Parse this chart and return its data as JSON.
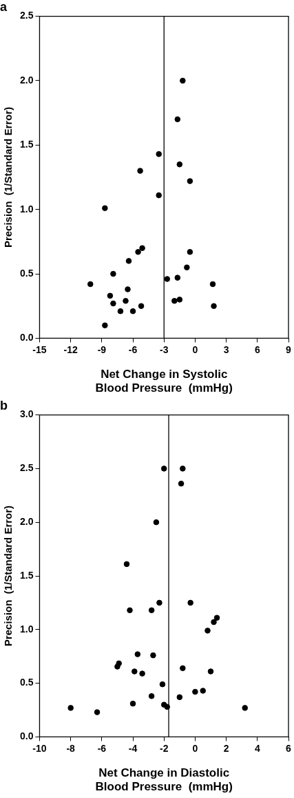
{
  "chart_data": [
    {
      "type": "scatter",
      "title": "a",
      "xlabel": "Net Change in Systolic Blood Pressure  (mmHg)",
      "ylabel": "Precision  (1/Standard Error)",
      "series": [
        {
          "color": "#000000",
          "x": [
            -1.2,
            -1.7,
            -3.5,
            -1.5,
            -5.3,
            -0.5,
            -3.5,
            -8.7,
            -5.1,
            -5.5,
            -6.4,
            -7.9,
            -10.1,
            -6.5,
            -8.2,
            -7.9,
            -6.7,
            -7.2,
            -6.0,
            -5.2,
            -8.7,
            -2.7,
            -1.7,
            -0.8,
            -0.5,
            -2.0,
            -1.5,
            1.7,
            1.8
          ],
          "values": [
            2.0,
            1.7,
            1.43,
            1.35,
            1.3,
            1.22,
            1.11,
            1.01,
            0.7,
            0.67,
            0.6,
            0.5,
            0.42,
            0.38,
            0.33,
            0.27,
            0.29,
            0.21,
            0.21,
            0.25,
            0.1,
            0.46,
            0.47,
            0.55,
            0.67,
            0.29,
            0.3,
            0.42,
            0.25
          ]
        }
      ],
      "xlim": [
        -15,
        9
      ],
      "xticks": [
        -15,
        -12,
        -9,
        -6,
        -3,
        0,
        3,
        6,
        9
      ],
      "ylim": [
        0,
        2.5
      ],
      "yticks": [
        {
          "value": 0,
          "label": "0.0"
        },
        {
          "value": 0.5,
          "label": "0.5"
        },
        {
          "value": 1,
          "label": "1.0"
        },
        {
          "value": 1.5,
          "label": "1.5"
        },
        {
          "value": 2,
          "label": "2.0"
        },
        {
          "value": 2.5,
          "label": "2.5"
        }
      ],
      "ref_lines": [
        {
          "axis": "x",
          "value": -3,
          "color": "#000000"
        }
      ],
      "grid": false,
      "legend": false,
      "marker": "circle"
    },
    {
      "type": "scatter",
      "title": "b",
      "xlabel": "Net Change in Diastolic Blood Pressure  (mmHg)",
      "ylabel": "Precision  (1/Standard Error)",
      "series": [
        {
          "color": "#000000",
          "x": [
            -2.0,
            -0.8,
            -0.9,
            -2.5,
            -4.4,
            -4.2,
            -2.8,
            -2.3,
            -0.3,
            1.4,
            1.2,
            0.8,
            -3.7,
            -2.7,
            -4.9,
            -5.0,
            -0.8,
            -3.9,
            1.0,
            -3.4,
            -2.1,
            0.5,
            0.0,
            -2.8,
            -1.0,
            -4.0,
            -2.0,
            -1.8,
            -8.0,
            -6.3,
            3.2
          ],
          "values": [
            2.5,
            2.5,
            2.36,
            2.0,
            1.61,
            1.18,
            1.18,
            1.25,
            1.25,
            1.11,
            1.07,
            0.99,
            0.77,
            0.76,
            0.685,
            0.655,
            0.64,
            0.61,
            0.61,
            0.59,
            0.49,
            0.43,
            0.42,
            0.38,
            0.37,
            0.31,
            0.3,
            0.28,
            0.27,
            0.23,
            0.27
          ]
        }
      ],
      "xlim": [
        -10,
        6
      ],
      "xticks": [
        -10,
        -8,
        -6,
        -4,
        -2,
        0,
        2,
        4,
        6
      ],
      "ylim": [
        0,
        3
      ],
      "yticks": [
        {
          "value": 0,
          "label": "0.0"
        },
        {
          "value": 0.5,
          "label": "0.5"
        },
        {
          "value": 1,
          "label": "1.0"
        },
        {
          "value": 1.5,
          "label": "1.5"
        },
        {
          "value": 2,
          "label": "2.0"
        },
        {
          "value": 2.5,
          "label": "2.5"
        },
        {
          "value": 3,
          "label": "3.0"
        }
      ],
      "ref_lines": [
        {
          "axis": "x",
          "value": -1.7,
          "color": "#000000"
        }
      ],
      "grid": false,
      "legend": false,
      "marker": "circle"
    }
  ]
}
